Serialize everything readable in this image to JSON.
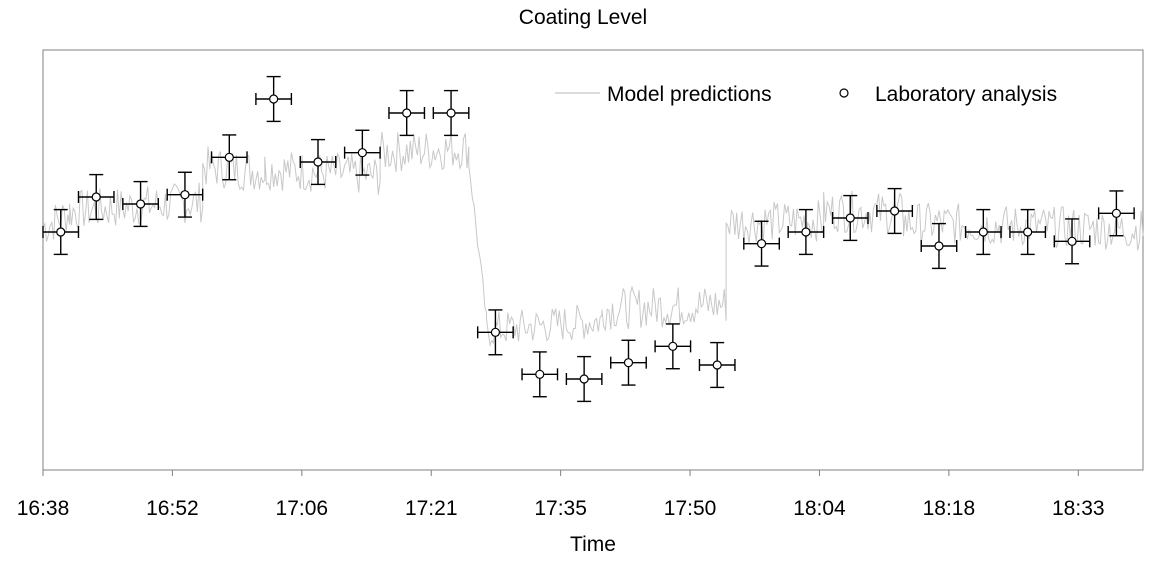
{
  "chart_data": {
    "type": "line",
    "title": "Coating Level",
    "xlabel": "Time",
    "ylabel": "",
    "legend_position": "top-right",
    "grid": false,
    "x_ticks": [
      "16:38",
      "16:52",
      "17:06",
      "17:21",
      "17:35",
      "17:50",
      "18:04",
      "18:18",
      "18:33"
    ],
    "x_range": [
      "16:38",
      "18:42"
    ],
    "series": [
      {
        "name": "Model predictions",
        "style": "line",
        "color": "#c8c8c8",
        "segments": [
          {
            "from": "16:38",
            "to": "16:41",
            "y_start": 5.2,
            "y_end": 5.5,
            "noise": 0.45
          },
          {
            "from": "16:41",
            "to": "16:56",
            "y_start": 5.55,
            "y_end": 5.75,
            "noise": 0.45
          },
          {
            "from": "16:56",
            "to": "17:03",
            "y_start": 6.5,
            "y_end": 6.4,
            "noise": 0.45
          },
          {
            "from": "17:03",
            "to": "17:16",
            "y_start": 6.45,
            "y_end": 6.3,
            "noise": 0.45
          },
          {
            "from": "17:16",
            "to": "17:26",
            "y_start": 6.8,
            "y_end": 6.9,
            "noise": 0.45
          },
          {
            "from": "17:26",
            "to": "17:28",
            "y_start": 6.6,
            "y_end": 3.2,
            "noise": 0.2
          },
          {
            "from": "17:28",
            "to": "17:41",
            "y_start": 3.0,
            "y_end": 3.2,
            "noise": 0.4
          },
          {
            "from": "17:41",
            "to": "17:55",
            "y_start": 3.45,
            "y_end": 3.55,
            "noise": 0.45
          },
          {
            "from": "17:55",
            "to": "18:06",
            "y_start": 5.3,
            "y_end": 5.35,
            "noise": 0.45
          },
          {
            "from": "18:06",
            "to": "18:15",
            "y_start": 5.55,
            "y_end": 5.5,
            "noise": 0.45
          },
          {
            "from": "18:15",
            "to": "18:42",
            "y_start": 5.3,
            "y_end": 5.15,
            "noise": 0.45
          }
        ]
      },
      {
        "name": "Laboratory analysis",
        "style": "errorbar",
        "color": "#000000",
        "points": [
          {
            "x": "16:40",
            "y": 5.1
          },
          {
            "x": "16:44",
            "y": 5.85
          },
          {
            "x": "16:49",
            "y": 5.7
          },
          {
            "x": "16:54",
            "y": 5.9
          },
          {
            "x": "16:59",
            "y": 6.7
          },
          {
            "x": "17:04",
            "y": 7.95
          },
          {
            "x": "17:09",
            "y": 6.6
          },
          {
            "x": "17:14",
            "y": 6.8
          },
          {
            "x": "17:19",
            "y": 7.65
          },
          {
            "x": "17:24",
            "y": 7.65
          },
          {
            "x": "17:29",
            "y": 2.95
          },
          {
            "x": "17:34",
            "y": 2.05
          },
          {
            "x": "17:39",
            "y": 1.95
          },
          {
            "x": "17:44",
            "y": 2.3
          },
          {
            "x": "17:49",
            "y": 2.65
          },
          {
            "x": "17:54",
            "y": 2.25
          },
          {
            "x": "17:59",
            "y": 4.85
          },
          {
            "x": "18:04",
            "y": 5.1
          },
          {
            "x": "18:09",
            "y": 5.4
          },
          {
            "x": "18:14",
            "y": 5.55
          },
          {
            "x": "18:19",
            "y": 4.8
          },
          {
            "x": "18:24",
            "y": 5.1
          },
          {
            "x": "18:29",
            "y": 5.1
          },
          {
            "x": "18:34",
            "y": 4.9
          },
          {
            "x": "18:39",
            "y": 5.5
          }
        ],
        "x_error_minutes": 1,
        "y_error": 0.4
      }
    ],
    "ylim": [
      0,
      9
    ]
  }
}
